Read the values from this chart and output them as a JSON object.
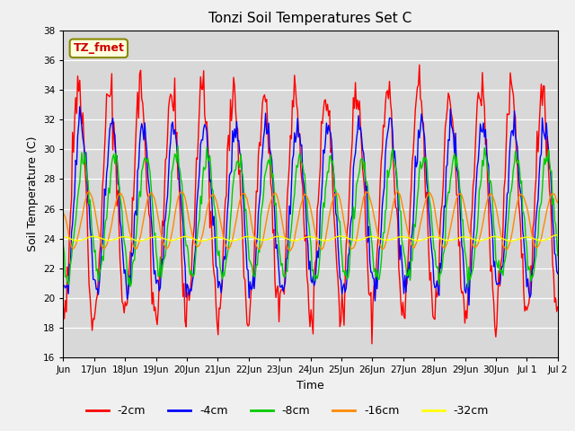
{
  "title": "Tonzi Soil Temperatures Set C",
  "ylabel": "Soil Temperature (C)",
  "xlabel": "Time",
  "ylim": [
    16,
    38
  ],
  "yticks": [
    16,
    18,
    20,
    22,
    24,
    26,
    28,
    30,
    32,
    34,
    36,
    38
  ],
  "annotation_label": "TZ_fmet",
  "line_colors": {
    "-2cm": "#ff0000",
    "-4cm": "#0000ff",
    "-8cm": "#00cc00",
    "-16cm": "#ff8800",
    "-32cm": "#ffff00"
  },
  "line_labels": [
    "-2cm",
    "-4cm",
    "-8cm",
    "-16cm",
    "-32cm"
  ],
  "plot_bg_color": "#d8d8d8",
  "fig_bg_color": "#f0f0f0",
  "n_points": 480
}
